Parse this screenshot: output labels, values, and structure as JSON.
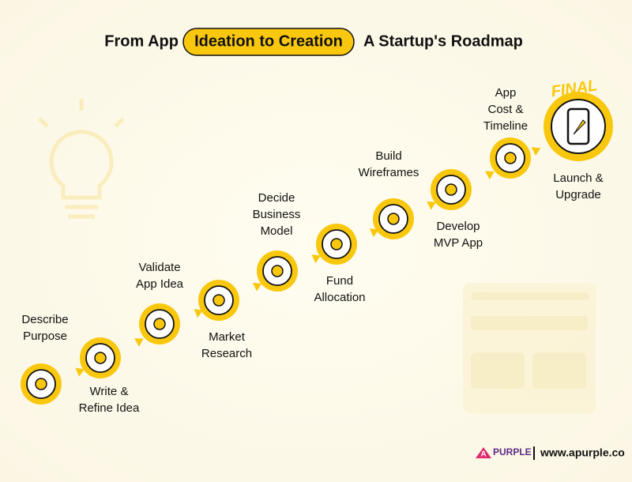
{
  "title": {
    "before": "From App",
    "highlight": "Ideation to Creation",
    "after": "A Startup's Roadmap"
  },
  "steps": [
    {
      "lines": [
        "Describe",
        "Purpose"
      ]
    },
    {
      "lines": [
        "Write &",
        "Refine Idea"
      ]
    },
    {
      "lines": [
        "Validate",
        "App Idea"
      ]
    },
    {
      "lines": [
        "Market",
        "Research"
      ]
    },
    {
      "lines": [
        "Decide",
        "Business",
        "Model"
      ]
    },
    {
      "lines": [
        "Fund",
        "Allocation"
      ]
    },
    {
      "lines": [
        "Build",
        "Wireframes"
      ]
    },
    {
      "lines": [
        "Develop",
        "MVP App"
      ]
    },
    {
      "lines": [
        "App",
        "Cost &",
        "Timeline"
      ]
    }
  ],
  "final": {
    "badge": "FINAL",
    "lines": [
      "Launch &",
      "Upgrade"
    ]
  },
  "footer": {
    "logo_mark": "A",
    "logo_text": "PURPLE",
    "url": "www.apurple.co"
  }
}
